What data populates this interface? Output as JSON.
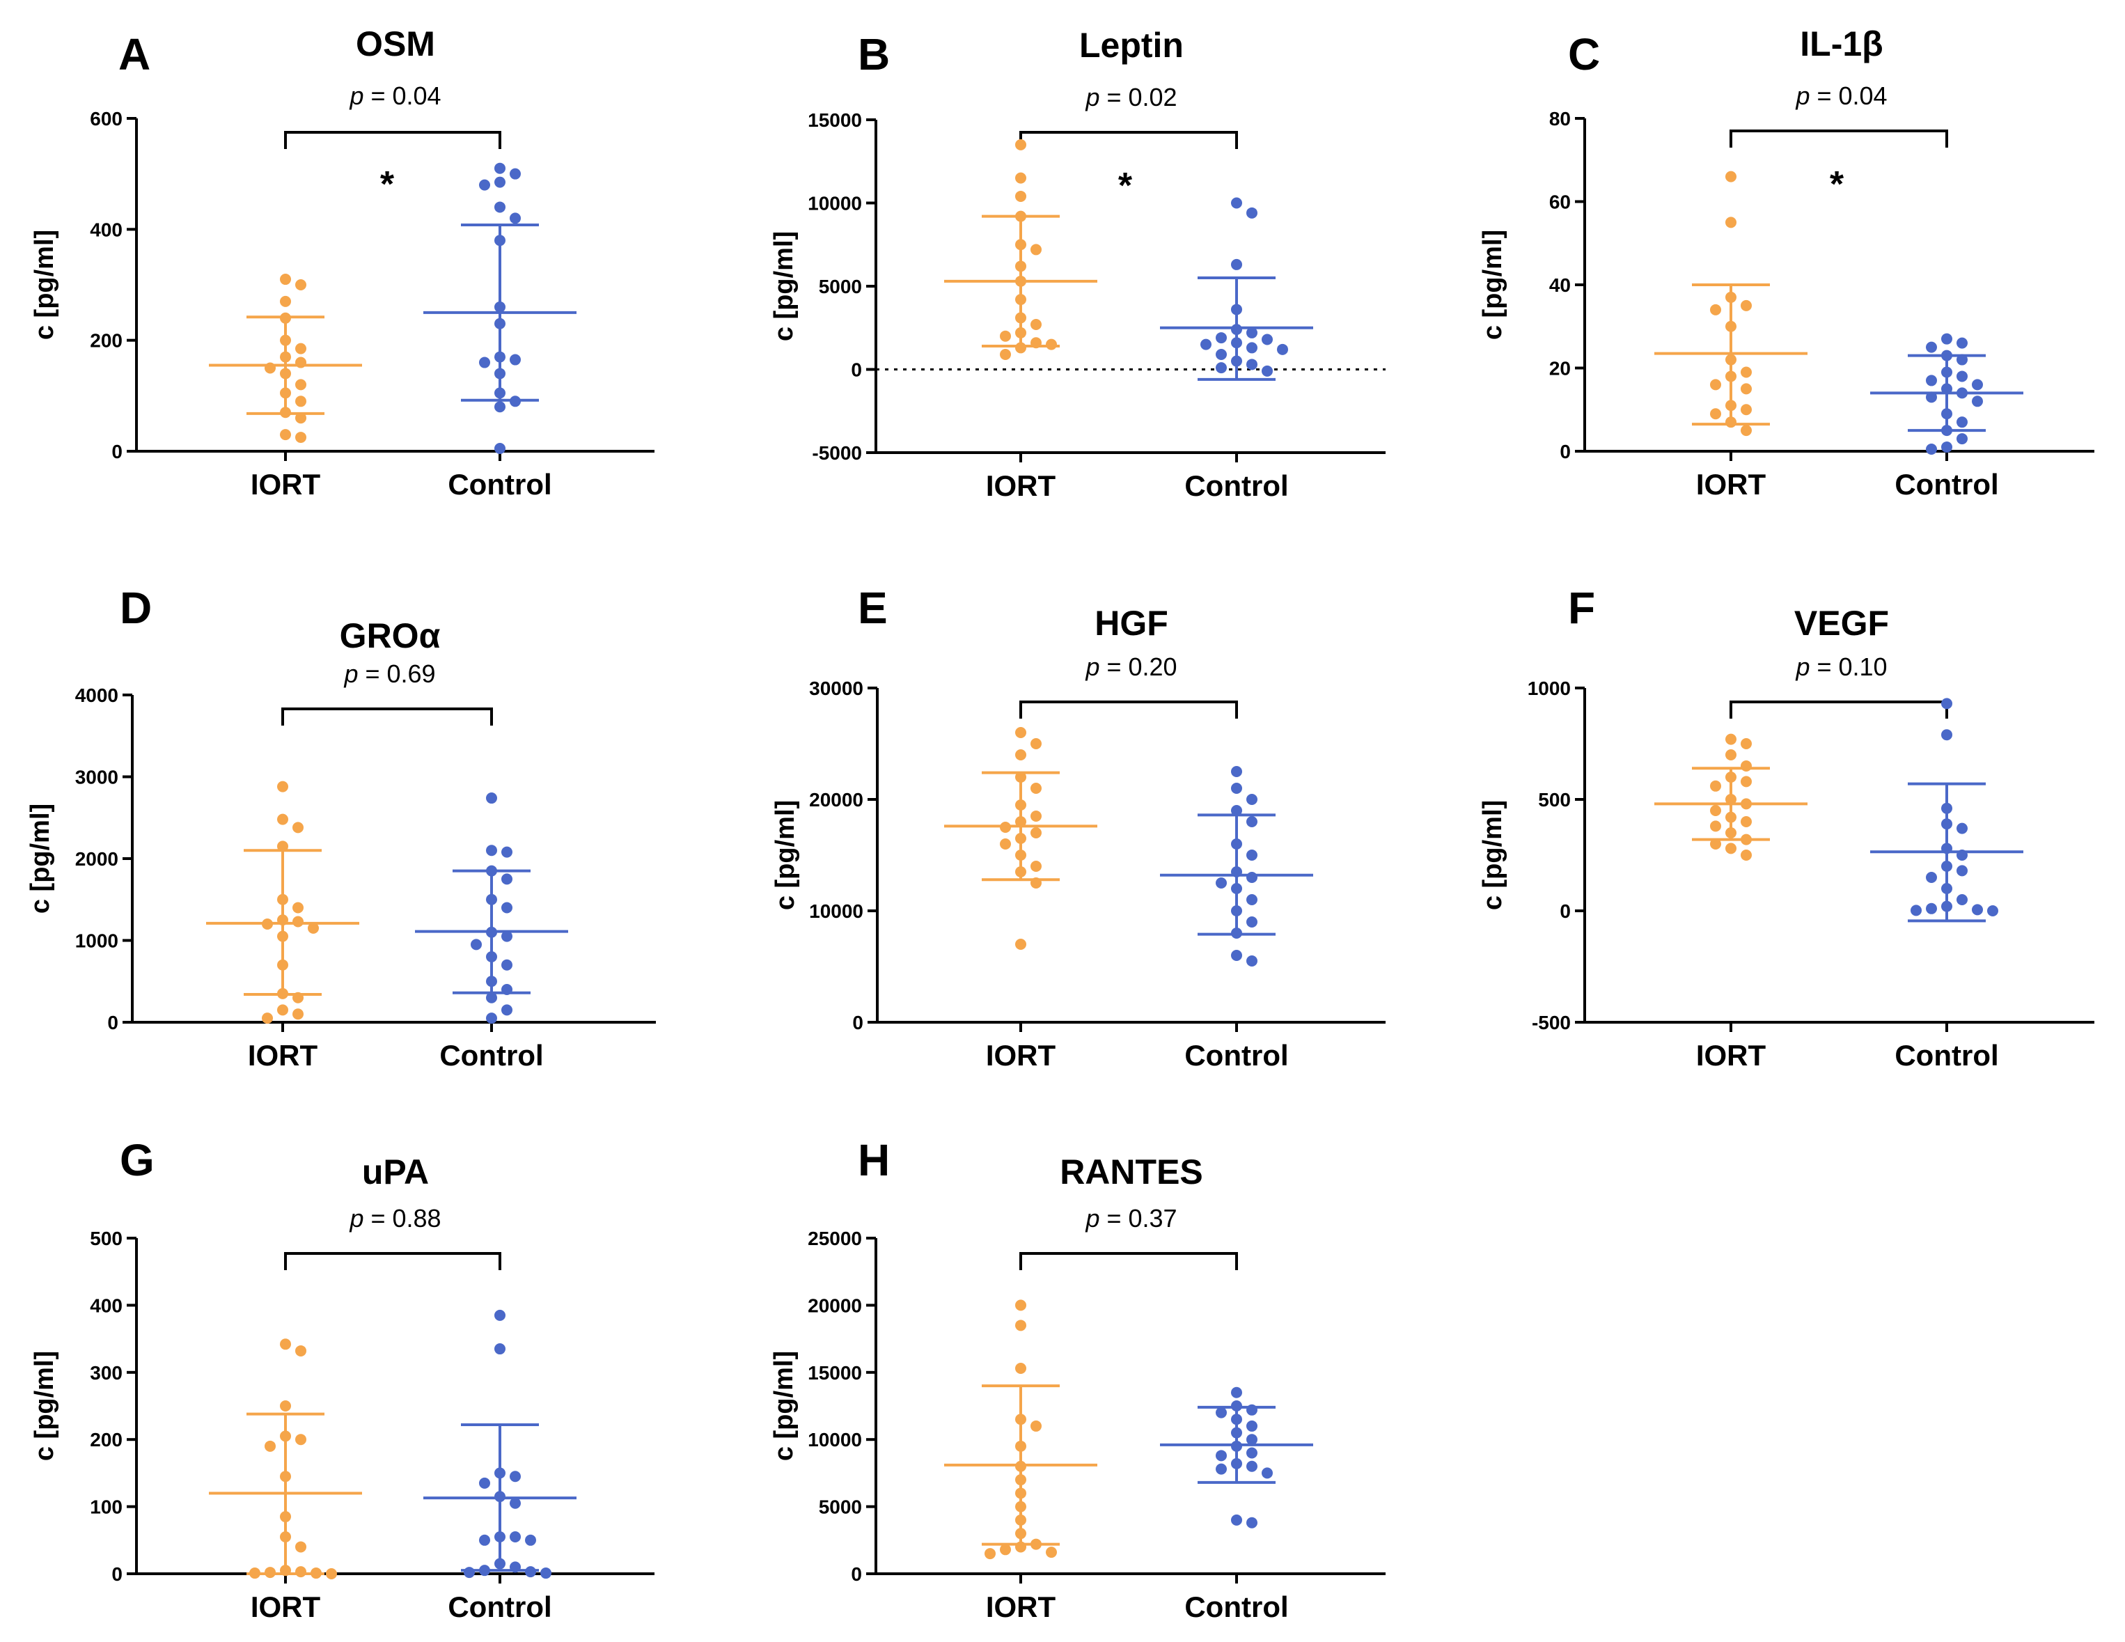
{
  "figure": {
    "colors": {
      "iort": "#F5A54A",
      "control": "#4A68C8",
      "axis": "#000000"
    }
  },
  "chart_data": [
    {
      "type": "scatter",
      "panel": "A",
      "title": "OSM",
      "ylabel": "c [pg/ml]",
      "categories": [
        "IORT",
        "Control"
      ],
      "yticks": [
        0,
        200,
        400,
        600
      ],
      "ylim": [
        0,
        600
      ],
      "p_prefix": "p",
      "p_value": "= 0.04",
      "significance": "*",
      "zero_line": false,
      "series": [
        {
          "name": "IORT",
          "mean": 155,
          "sd_low": 68,
          "sd_high": 242,
          "values": [
            310,
            300,
            270,
            240,
            200,
            185,
            170,
            160,
            150,
            140,
            120,
            105,
            90,
            70,
            60,
            30,
            25
          ]
        },
        {
          "name": "Control",
          "mean": 250,
          "sd_low": 92,
          "sd_high": 408,
          "values": [
            510,
            500,
            485,
            480,
            440,
            420,
            380,
            260,
            230,
            170,
            165,
            160,
            140,
            105,
            90,
            80,
            5
          ]
        }
      ]
    },
    {
      "type": "scatter",
      "panel": "B",
      "title": "Leptin",
      "ylabel": "c [pg/ml]",
      "categories": [
        "IORT",
        "Control"
      ],
      "yticks": [
        -5000,
        0,
        5000,
        10000,
        15000
      ],
      "ylim": [
        -5000,
        15000
      ],
      "p_prefix": "p",
      "p_value": "= 0.02",
      "significance": "*",
      "zero_line": true,
      "series": [
        {
          "name": "IORT",
          "mean": 5300,
          "sd_low": 1400,
          "sd_high": 9200,
          "values": [
            13500,
            11500,
            10400,
            9200,
            7500,
            7200,
            6200,
            5300,
            4200,
            3100,
            2700,
            2200,
            2000,
            1600,
            1500,
            1300,
            900
          ]
        },
        {
          "name": "Control",
          "mean": 2500,
          "sd_low": -600,
          "sd_high": 5500,
          "values": [
            10000,
            9400,
            6300,
            3600,
            2400,
            2200,
            1900,
            1800,
            1600,
            1500,
            1300,
            1200,
            900,
            500,
            300,
            100,
            -100
          ]
        }
      ]
    },
    {
      "type": "scatter",
      "panel": "C",
      "title": "IL-1β",
      "ylabel": "c [pg/ml]",
      "categories": [
        "IORT",
        "Control"
      ],
      "yticks": [
        0,
        20,
        40,
        60,
        80
      ],
      "ylim": [
        0,
        80
      ],
      "p_prefix": "p",
      "p_value": "= 0.04",
      "significance": "*",
      "zero_line": false,
      "series": [
        {
          "name": "IORT",
          "mean": 23.5,
          "sd_low": 6.5,
          "sd_high": 40,
          "values": [
            66,
            55,
            37,
            35,
            34,
            30,
            22,
            19,
            18,
            16,
            15,
            11,
            10,
            9,
            7,
            5
          ]
        },
        {
          "name": "Control",
          "mean": 14,
          "sd_low": 5,
          "sd_high": 23,
          "values": [
            27,
            26,
            25,
            23,
            22,
            19,
            18,
            17,
            16,
            15,
            14,
            13,
            12,
            9,
            7,
            5,
            3,
            1,
            0.5
          ]
        }
      ]
    },
    {
      "type": "scatter",
      "panel": "D",
      "title": "GROα",
      "ylabel": "c [pg/ml]",
      "categories": [
        "IORT",
        "Control"
      ],
      "yticks": [
        0,
        1000,
        2000,
        3000,
        4000
      ],
      "ylim": [
        0,
        4000
      ],
      "p_prefix": "p",
      "p_value": "= 0.69",
      "significance": "",
      "zero_line": false,
      "series": [
        {
          "name": "IORT",
          "mean": 1210,
          "sd_low": 340,
          "sd_high": 2100,
          "values": [
            2880,
            2480,
            2380,
            2150,
            1500,
            1400,
            1250,
            1230,
            1200,
            1150,
            1050,
            700,
            350,
            300,
            150,
            100,
            50
          ]
        },
        {
          "name": "Control",
          "mean": 1110,
          "sd_low": 360,
          "sd_high": 1850,
          "values": [
            2740,
            2100,
            2080,
            1850,
            1750,
            1500,
            1400,
            1100,
            1050,
            950,
            800,
            700,
            500,
            400,
            300,
            150,
            50
          ]
        }
      ]
    },
    {
      "type": "scatter",
      "panel": "E",
      "title": "HGF",
      "ylabel": "c [pg/ml]",
      "categories": [
        "IORT",
        "Control"
      ],
      "yticks": [
        0,
        10000,
        20000,
        30000
      ],
      "ylim": [
        0,
        30000
      ],
      "p_prefix": "p",
      "p_value": "= 0.20",
      "significance": "",
      "zero_line": false,
      "series": [
        {
          "name": "IORT",
          "mean": 17600,
          "sd_low": 12800,
          "sd_high": 22400,
          "values": [
            26000,
            25000,
            24000,
            22000,
            21000,
            19500,
            18500,
            18000,
            17500,
            17000,
            16500,
            16000,
            15000,
            14000,
            13500,
            12500,
            7000
          ]
        },
        {
          "name": "Control",
          "mean": 13200,
          "sd_low": 7900,
          "sd_high": 18600,
          "values": [
            22500,
            21000,
            20000,
            19000,
            18000,
            16000,
            15000,
            13500,
            13000,
            12500,
            12000,
            11000,
            10000,
            9000,
            8000,
            6000,
            5500
          ]
        }
      ]
    },
    {
      "type": "scatter",
      "panel": "F",
      "title": "VEGF",
      "ylabel": "c [pg/ml]",
      "categories": [
        "IORT",
        "Control"
      ],
      "yticks": [
        -500,
        0,
        500,
        1000
      ],
      "ylim": [
        -500,
        1000
      ],
      "p_prefix": "p",
      "p_value": "= 0.10",
      "significance": "",
      "zero_line": false,
      "series": [
        {
          "name": "IORT",
          "mean": 480,
          "sd_low": 320,
          "sd_high": 640,
          "values": [
            770,
            750,
            700,
            650,
            600,
            580,
            560,
            500,
            480,
            450,
            420,
            400,
            380,
            350,
            320,
            300,
            280,
            250
          ]
        },
        {
          "name": "Control",
          "mean": 265,
          "sd_low": -45,
          "sd_high": 570,
          "values": [
            930,
            790,
            460,
            390,
            370,
            280,
            250,
            200,
            180,
            150,
            100,
            50,
            20,
            10,
            5,
            2,
            0
          ]
        }
      ]
    },
    {
      "type": "scatter",
      "panel": "G",
      "title": "uPA",
      "ylabel": "c [pg/ml]",
      "categories": [
        "IORT",
        "Control"
      ],
      "yticks": [
        0,
        100,
        200,
        300,
        400,
        500
      ],
      "ylim": [
        0,
        500
      ],
      "p_prefix": "p",
      "p_value": "= 0.88",
      "significance": "",
      "zero_line": false,
      "series": [
        {
          "name": "IORT",
          "mean": 120,
          "sd_low": 0,
          "sd_high": 238,
          "values": [
            342,
            332,
            250,
            205,
            200,
            190,
            145,
            85,
            55,
            40,
            5,
            3,
            2,
            1,
            1,
            0
          ]
        },
        {
          "name": "Control",
          "mean": 113,
          "sd_low": 5,
          "sd_high": 222,
          "values": [
            385,
            335,
            150,
            145,
            135,
            115,
            105,
            55,
            55,
            50,
            50,
            15,
            10,
            5,
            3,
            2,
            1
          ]
        }
      ]
    },
    {
      "type": "scatter",
      "panel": "H",
      "title": "RANTES",
      "ylabel": "c [pg/ml]",
      "categories": [
        "IORT",
        "Control"
      ],
      "yticks": [
        0,
        5000,
        10000,
        15000,
        20000,
        25000
      ],
      "ylim": [
        0,
        25000
      ],
      "p_prefix": "p",
      "p_value": "= 0.37",
      "significance": "",
      "zero_line": false,
      "series": [
        {
          "name": "IORT",
          "mean": 8100,
          "sd_low": 2200,
          "sd_high": 14000,
          "values": [
            20000,
            18500,
            15300,
            11500,
            11000,
            9500,
            8000,
            7000,
            6000,
            5000,
            4000,
            3000,
            2200,
            2000,
            1800,
            1600,
            1500
          ]
        },
        {
          "name": "Control",
          "mean": 9600,
          "sd_low": 6800,
          "sd_high": 12400,
          "values": [
            13500,
            12500,
            12200,
            12000,
            11500,
            11000,
            10500,
            10000,
            9500,
            9000,
            8800,
            8200,
            8000,
            7800,
            7500,
            4000,
            3800
          ]
        }
      ]
    }
  ]
}
